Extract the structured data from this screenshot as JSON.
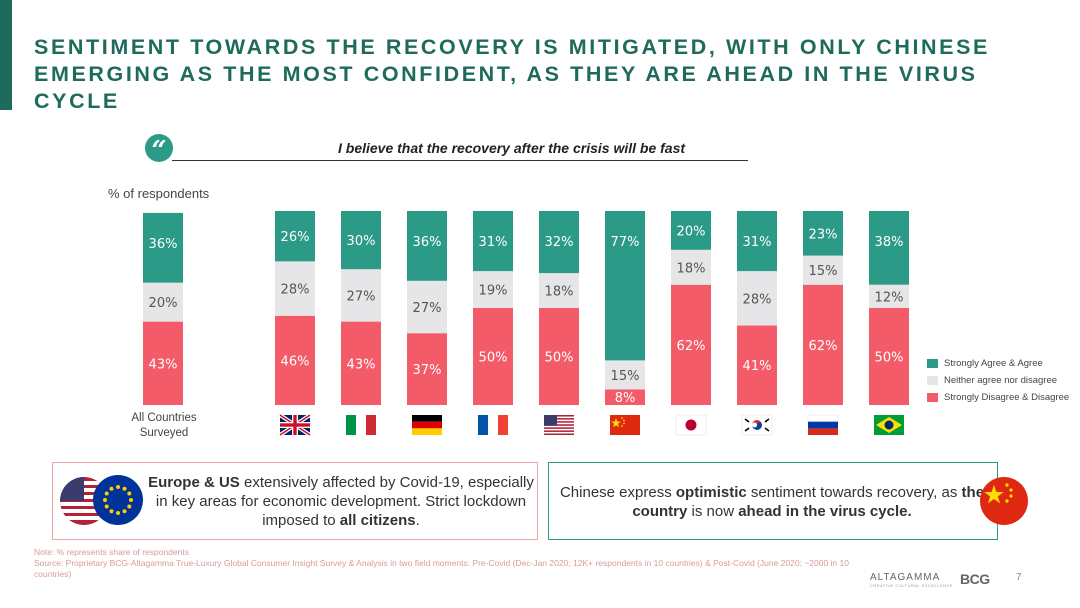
{
  "title": {
    "line1": "SENTIMENT TOWARDS THE RECOVERY IS MITIGATED, WITH ONLY CHINESE",
    "line2": "EMERGING AS THE MOST CONFIDENT, AS THEY ARE AHEAD IN THE VIRUS CYCLE"
  },
  "quote": {
    "mark": "“",
    "text": "I believe that the recovery after the crisis will be fast"
  },
  "y_caption": "% of respondents",
  "all_countries_label": "All Countries Surveyed",
  "colors": {
    "accent": "#1f6b5b",
    "agree": "#2b9a86",
    "neither": "#e6e6e8",
    "disagree": "#f45b69"
  },
  "chart_data": {
    "type": "bar",
    "stacked": true,
    "categories": [
      "All Countries Surveyed",
      "UK",
      "Italy",
      "Germany",
      "France",
      "USA",
      "China",
      "Japan",
      "South Korea",
      "Russia",
      "Brazil"
    ],
    "series": [
      {
        "name": "Strongly Disagree & Disagree",
        "values": [
          43,
          46,
          43,
          37,
          50,
          50,
          8,
          62,
          41,
          62,
          50
        ]
      },
      {
        "name": "Neither agree nor disagree",
        "values": [
          20,
          28,
          27,
          27,
          19,
          18,
          15,
          18,
          28,
          15,
          12
        ]
      },
      {
        "name": "Strongly Agree & Agree",
        "values": [
          36,
          26,
          30,
          36,
          31,
          32,
          77,
          20,
          31,
          23,
          38
        ]
      }
    ],
    "ylim": [
      0,
      100
    ],
    "legend_placement": "right",
    "grid": false
  },
  "legend": {
    "agree": "Strongly Agree & Agree",
    "neither": "Neither agree nor disagree",
    "disagree": "Strongly Disagree & Disagree"
  },
  "flags": [
    "uk-flag",
    "italy-flag",
    "germany-flag",
    "france-flag",
    "usa-flag",
    "china-flag",
    "japan-flag",
    "south-korea-flag",
    "russia-flag",
    "brazil-flag"
  ],
  "box_eu": {
    "bold1": "Europe & US",
    "text1": " extensively affected by Covid-19, especially in key areas for economic development. Strict lockdown imposed to ",
    "bold2": "all citizens",
    "text2": "."
  },
  "box_cn": {
    "text1": "Chinese express ",
    "bold1": "optimistic",
    "text2": " sentiment towards recovery, as ",
    "bold2": "the country",
    "text3": " is now ",
    "bold3": "ahead in the virus cycle."
  },
  "note": "Note: % represents share of respondents",
  "source": "Source: Proprietary BCG-Altagamma True-Luxury Global Consumer Insight Survey & Analysis in two field moments: Pre-Covid (Dec-Jan 2020; 12K+ respondents in 10 countries) & Post-Covid (June 2020; ~2000 in 10 countries)",
  "page_number": "7",
  "logos": {
    "altagamma": "ALTAGAMMA",
    "altagamma_tagline": "CREATIVE CULTURAL EXCELLENCE",
    "bcg": "BCG"
  }
}
